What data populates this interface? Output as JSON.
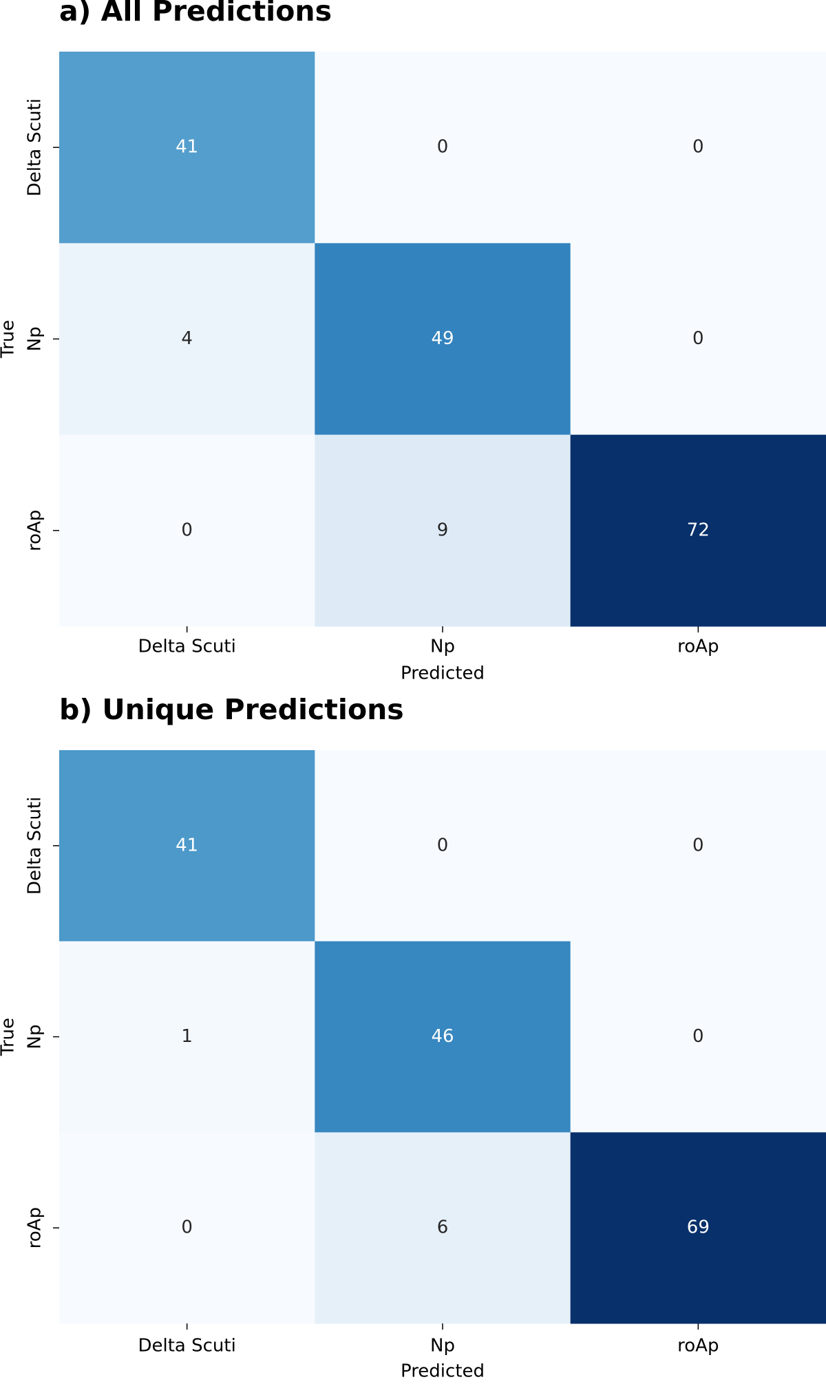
{
  "chart_data": [
    {
      "type": "heatmap",
      "title": "a) All Predictions",
      "xlabel": "Predicted",
      "ylabel": "True",
      "x_categories": [
        "Delta Scuti",
        "Np",
        "roAp"
      ],
      "y_categories": [
        "Delta Scuti",
        "Np",
        "roAp"
      ],
      "values": [
        [
          41,
          0,
          0
        ],
        [
          4,
          49,
          0
        ],
        [
          0,
          9,
          72
        ]
      ],
      "colormap": "Blues"
    },
    {
      "type": "heatmap",
      "title": "b) Unique Predictions",
      "xlabel": "Predicted",
      "ylabel": "True",
      "x_categories": [
        "Delta Scuti",
        "Np",
        "roAp"
      ],
      "y_categories": [
        "Delta Scuti",
        "Np",
        "roAp"
      ],
      "values": [
        [
          41,
          0,
          0
        ],
        [
          1,
          46,
          0
        ],
        [
          0,
          6,
          69
        ]
      ],
      "colormap": "Blues"
    }
  ]
}
